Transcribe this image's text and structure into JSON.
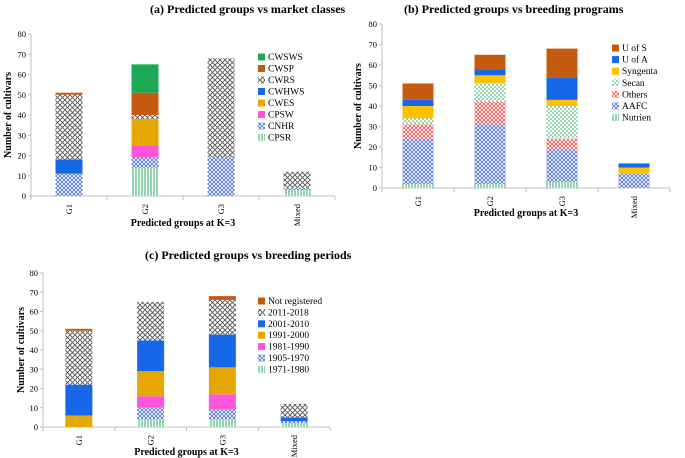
{
  "chart_data": [
    {
      "type": "bar",
      "stacked": true,
      "title": "(a) Predicted groups vs market classes",
      "xlabel": "Predicted groups at K=3",
      "ylabel": "Number of cultivars",
      "categories": [
        "G1",
        "G2",
        "G3",
        "Mixed"
      ],
      "ylim": [
        0,
        80
      ],
      "yticks": [
        0,
        10,
        20,
        30,
        40,
        50,
        60,
        70,
        80
      ],
      "series": [
        {
          "name": "CPSR",
          "color": "#3cb371",
          "pattern": "vlines",
          "values": [
            0,
            14,
            0,
            3
          ]
        },
        {
          "name": "CNHR",
          "color": "#4a6fd0",
          "pattern": "cross",
          "values": [
            11,
            5,
            19,
            1
          ]
        },
        {
          "name": "CPSW",
          "color": "#ff55dd",
          "pattern": "solid",
          "values": [
            0,
            6,
            0,
            0
          ]
        },
        {
          "name": "CWES",
          "color": "#e6a800",
          "pattern": "solid",
          "values": [
            0,
            13,
            0,
            0
          ]
        },
        {
          "name": "CWHWS",
          "color": "#1668e8",
          "pattern": "solid",
          "values": [
            7,
            0,
            0,
            0
          ]
        },
        {
          "name": "CWRS",
          "color": "#555555",
          "pattern": "checker",
          "values": [
            32,
            2,
            49,
            8
          ]
        },
        {
          "name": "CWSP",
          "color": "#c55a11",
          "pattern": "solid",
          "values": [
            1,
            11,
            0,
            0
          ]
        },
        {
          "name": "CWSWS",
          "color": "#1aaa55",
          "pattern": "solid",
          "values": [
            0,
            14,
            0,
            0
          ]
        }
      ]
    },
    {
      "type": "bar",
      "stacked": true,
      "title": "(b) Predicted groups vs breeding programs",
      "xlabel": "Predicted groups at K=3",
      "ylabel": "Number of cultivars",
      "categories": [
        "G1",
        "G2",
        "G3",
        "Mixed"
      ],
      "ylim": [
        0,
        80
      ],
      "yticks": [
        0,
        10,
        20,
        30,
        40,
        50,
        60,
        70,
        80
      ],
      "series": [
        {
          "name": "Nutrien",
          "color": "#3cb371",
          "pattern": "vlines",
          "values": [
            2,
            2,
            3,
            0
          ]
        },
        {
          "name": "AAFC",
          "color": "#4a6fd0",
          "pattern": "cross",
          "values": [
            22,
            29,
            16,
            7
          ]
        },
        {
          "name": "Others",
          "color": "#ff5050",
          "pattern": "cross",
          "values": [
            7,
            11,
            5,
            0
          ]
        },
        {
          "name": "Secan",
          "color": "#1aaa55",
          "pattern": "dots",
          "values": [
            3,
            9,
            16,
            0
          ]
        },
        {
          "name": "Syngenta",
          "color": "#ffc000",
          "pattern": "solid",
          "values": [
            6,
            4,
            3,
            3
          ]
        },
        {
          "name": "U of A",
          "color": "#1668e8",
          "pattern": "solid",
          "values": [
            3,
            3,
            11,
            2
          ]
        },
        {
          "name": "U of S",
          "color": "#c55a11",
          "pattern": "solid",
          "values": [
            8,
            7,
            14,
            0
          ]
        }
      ]
    },
    {
      "type": "bar",
      "stacked": true,
      "title": "(c) Predicted groups vs breeding periods",
      "xlabel": "Predicted groups at K=3",
      "ylabel": "Number of cultivars",
      "categories": [
        "G1",
        "G2",
        "G3",
        "Mixed"
      ],
      "ylim": [
        0,
        80
      ],
      "yticks": [
        0,
        10,
        20,
        30,
        40,
        50,
        60,
        70,
        80
      ],
      "series": [
        {
          "name": "1971-1980",
          "color": "#3cb371",
          "pattern": "vlines",
          "values": [
            0,
            4,
            4,
            2
          ]
        },
        {
          "name": "1905-1970",
          "color": "#4a6fd0",
          "pattern": "cross",
          "values": [
            0,
            6,
            5,
            1
          ]
        },
        {
          "name": "1981-1990",
          "color": "#ff55dd",
          "pattern": "solid",
          "values": [
            0,
            6,
            8,
            0
          ]
        },
        {
          "name": "1991-2000",
          "color": "#e6a800",
          "pattern": "solid",
          "values": [
            6,
            13,
            14,
            0
          ]
        },
        {
          "name": "2001-2010",
          "color": "#1668e8",
          "pattern": "solid",
          "values": [
            16,
            16,
            17,
            2
          ]
        },
        {
          "name": "2011-2018",
          "color": "#555555",
          "pattern": "checker",
          "values": [
            28,
            20,
            18,
            7
          ]
        },
        {
          "name": "Not registered",
          "color": "#c55a11",
          "pattern": "solid",
          "values": [
            1,
            0,
            2,
            0
          ]
        }
      ]
    }
  ]
}
